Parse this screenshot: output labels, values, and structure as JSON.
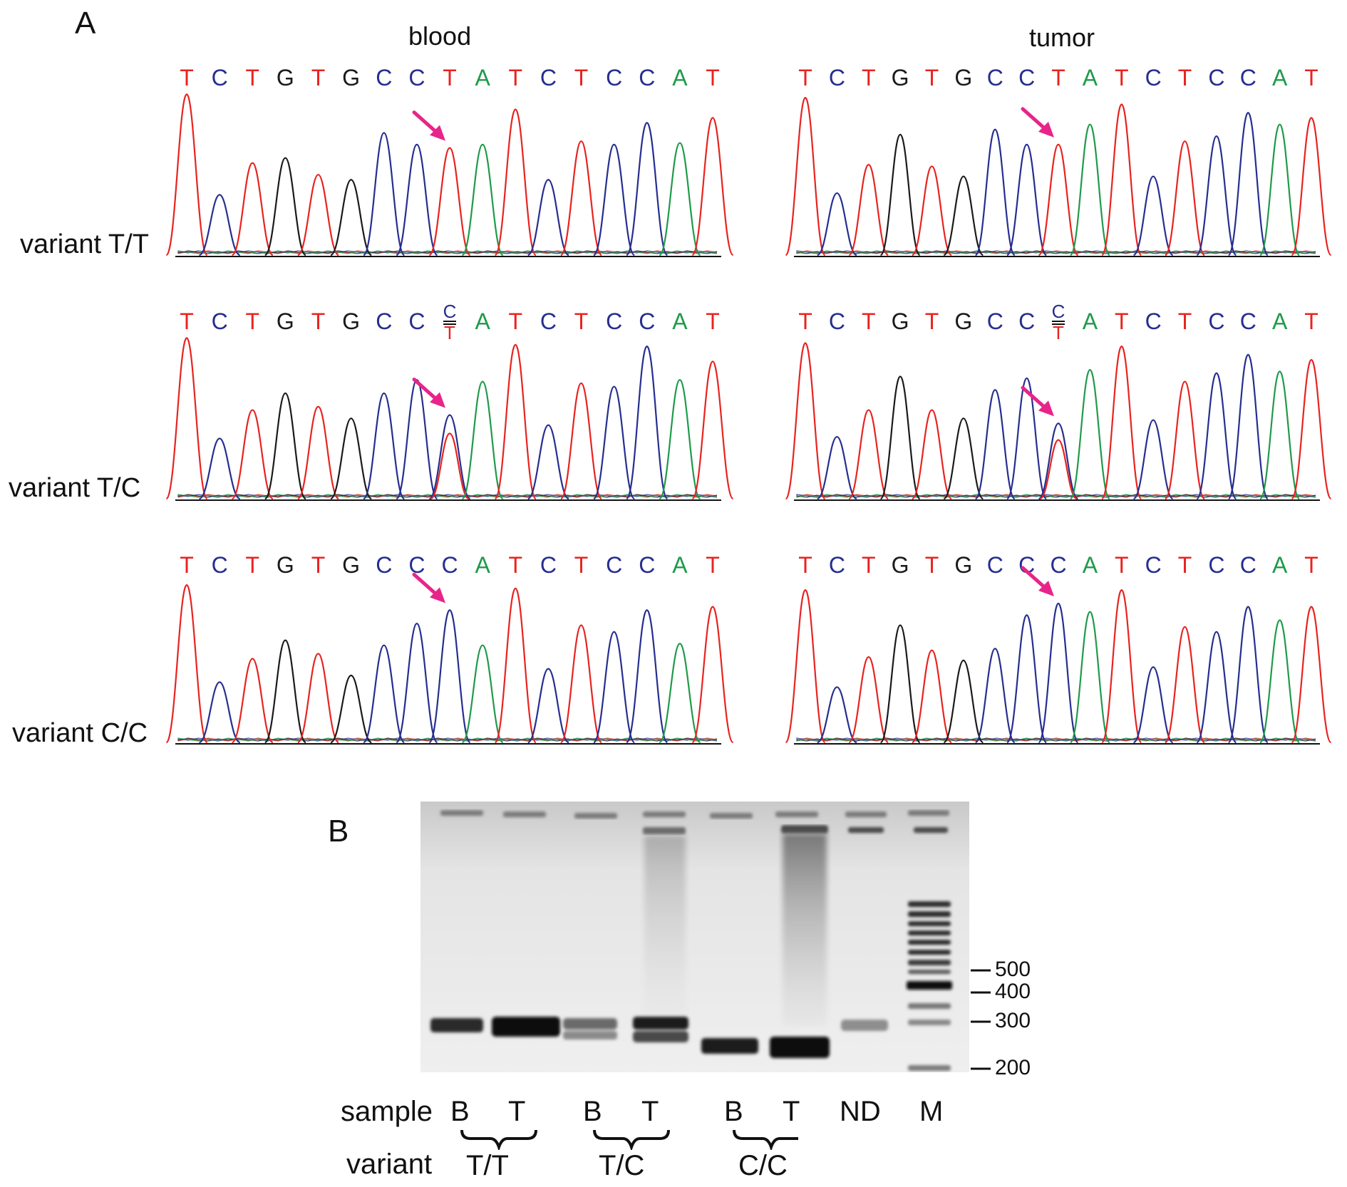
{
  "panel_a": {
    "letter": "A",
    "columns": [
      "blood",
      "tumor"
    ],
    "sequence": [
      "T",
      "C",
      "T",
      "G",
      "T",
      "G",
      "C",
      "C",
      "T",
      "A",
      "T",
      "C",
      "T",
      "C",
      "C",
      "A",
      "T"
    ],
    "variant_position": 9,
    "rows": [
      {
        "label": "variant T/T",
        "variant_base": "T",
        "heterozygous": false
      },
      {
        "label": "variant T/C",
        "variant_base": "C/T",
        "heterozygous": true
      },
      {
        "label": "variant C/C",
        "variant_base": "C",
        "heterozygous": false
      }
    ],
    "base_colors": {
      "T": "#e8231f",
      "C": "#262e8f",
      "G": "#1a1a1a",
      "A": "#1f9a4a"
    },
    "arrow_color": "#e8248a"
  },
  "panel_b": {
    "letter": "B",
    "marker_sizes": [
      "500",
      "400",
      "300",
      "200"
    ],
    "row_labels": {
      "sample": "sample",
      "variant": "variant"
    },
    "lanes": [
      "B",
      "T",
      "B",
      "T",
      "B",
      "T",
      "ND",
      "M"
    ],
    "variant_groups": [
      "T/T",
      "T/C",
      "C/C"
    ]
  }
}
